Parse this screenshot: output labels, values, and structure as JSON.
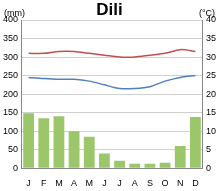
{
  "chart_data": {
    "type": "bar",
    "title": "Dili",
    "y_label": "(mm)",
    "y2_label": "(°C)",
    "categories": [
      "J",
      "F",
      "M",
      "A",
      "M",
      "J",
      "J",
      "A",
      "S",
      "O",
      "N",
      "D"
    ],
    "series": [
      {
        "type": "bar",
        "axis": "y",
        "color": "#9bc76a",
        "values": [
          148,
          135,
          140,
          100,
          85,
          40,
          20,
          12,
          12,
          15,
          60,
          138
        ]
      },
      {
        "type": "line",
        "axis": "y2",
        "color": "#c0504d",
        "values": [
          31,
          31,
          31.5,
          31.5,
          31,
          30.5,
          30,
          30,
          30.5,
          31,
          32,
          31.5
        ]
      },
      {
        "type": "line",
        "axis": "y2",
        "color": "#4f81bd",
        "values": [
          24.5,
          24.2,
          24,
          24,
          23.5,
          22.5,
          21.5,
          21.5,
          22,
          23.5,
          24.5,
          25
        ]
      }
    ],
    "ylim": [
      0,
      400
    ],
    "yticks": [
      0,
      50,
      100,
      150,
      200,
      250,
      300,
      350,
      400
    ],
    "y2lim": [
      0,
      40
    ],
    "y2ticks": [
      0,
      5,
      10,
      15,
      20,
      25,
      30,
      35,
      40
    ],
    "grid": true
  }
}
